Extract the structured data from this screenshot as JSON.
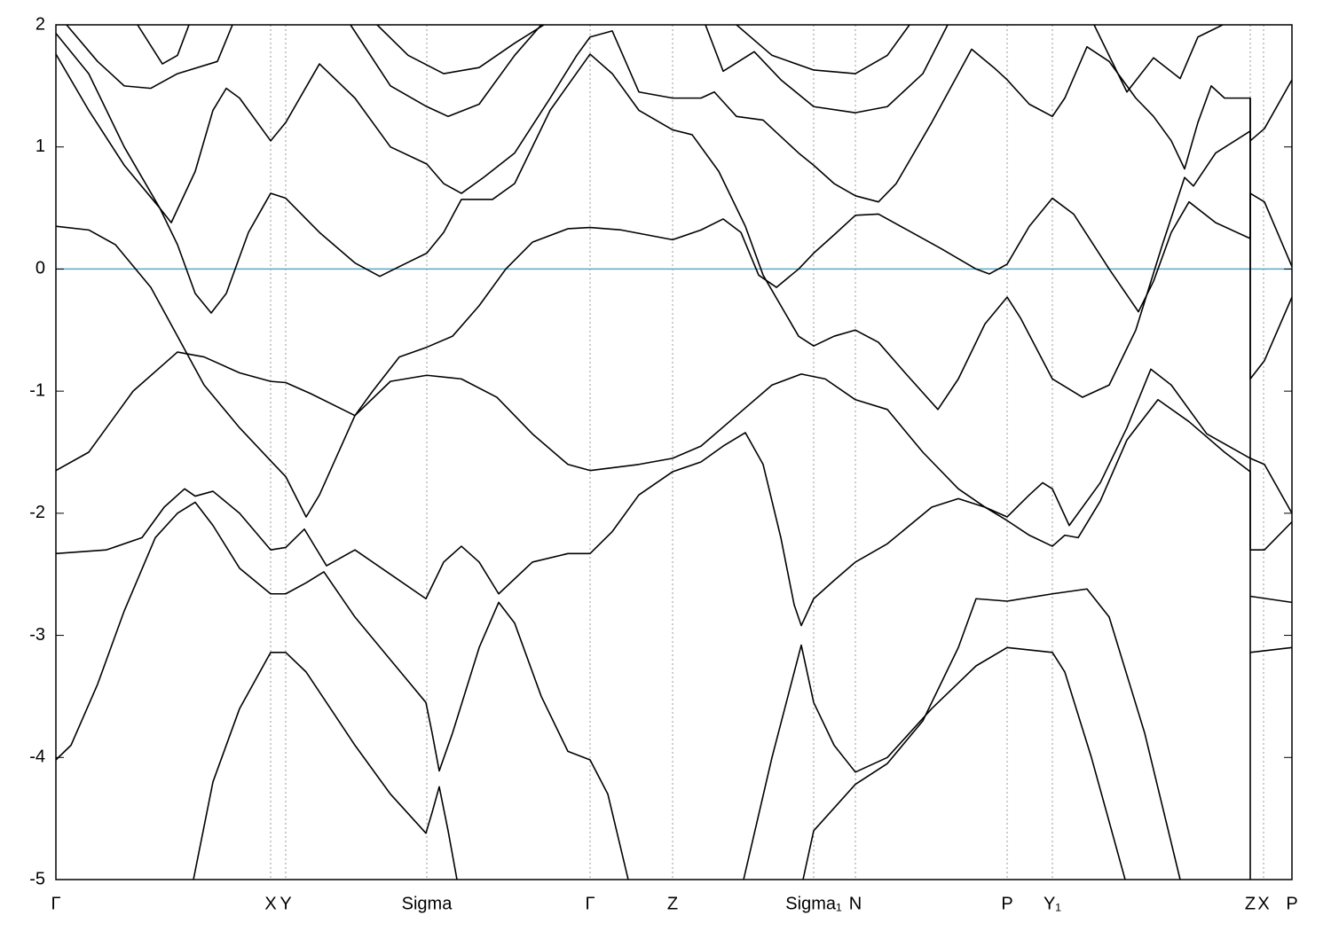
{
  "chart_data": {
    "type": "line",
    "color": "#000000",
    "xlim": [
      0,
      1393
    ],
    "ylim": [
      -5,
      2
    ],
    "yticks": [
      -5,
      -4,
      -3,
      -2,
      -1,
      0,
      1,
      2
    ],
    "xticks": [
      {
        "value": 0,
        "label": "Γ"
      },
      {
        "value": 242,
        "label": "X"
      },
      {
        "value": 259,
        "label": "Y"
      },
      {
        "value": 418,
        "label": "Sigma"
      },
      {
        "value": 602,
        "label": "Γ"
      },
      {
        "value": 695,
        "label": "Z"
      },
      {
        "value": 854,
        "label": "Sigma₁"
      },
      {
        "value": 901,
        "label": "N"
      },
      {
        "value": 1072,
        "label": "P"
      },
      {
        "value": 1123,
        "label": "Y₁"
      },
      {
        "value": 1346,
        "label": "Z"
      },
      {
        "value": 1361,
        "label": "X"
      },
      {
        "value": 1393,
        "label": "P"
      }
    ],
    "hline": {
      "value": 0,
      "color": "#5aa9c6"
    },
    "series": [
      {
        "x": [
          0,
          17,
          47,
          77,
          112,
          137,
          157,
          177,
          207,
          242,
          259,
          282,
          302,
          337,
          377,
          417,
          424,
          432,
          447,
          477,
          499,
          517,
          547,
          577,
          602,
          622,
          645
        ],
        "values": [
          -4.02,
          -3.9,
          -3.4,
          -2.8,
          -2.2,
          -2.0,
          -1.91,
          -2.1,
          -2.45,
          -2.66,
          -2.66,
          -2.57,
          -2.48,
          -2.85,
          -3.2,
          -3.55,
          -3.8,
          -4.11,
          -3.8,
          -3.1,
          -2.73,
          -2.9,
          -3.5,
          -3.95,
          -4.02,
          -4.3,
          -5
        ]
      },
      {
        "x": [
          0,
          57,
          97,
          122,
          145,
          157,
          177,
          207,
          242,
          259,
          280,
          305,
          337,
          377,
          417,
          437,
          457,
          477,
          499,
          537,
          577,
          602,
          627,
          657,
          695,
          727,
          752,
          777,
          797,
          817,
          832,
          840,
          854,
          877,
          901,
          937,
          987,
          1017,
          1047,
          1072,
          1097,
          1123,
          1137,
          1152,
          1177,
          1207,
          1242,
          1277,
          1317,
          1346,
          1346,
          1362,
          1393
        ],
        "values": [
          -2.33,
          -2.3,
          -2.2,
          -1.95,
          -1.8,
          -1.86,
          -1.82,
          -2.0,
          -2.3,
          -2.28,
          -2.13,
          -2.43,
          -2.3,
          -2.5,
          -2.7,
          -2.4,
          -2.27,
          -2.4,
          -2.66,
          -2.4,
          -2.33,
          -2.33,
          -2.15,
          -1.85,
          -1.66,
          -1.58,
          -1.45,
          -1.34,
          -1.6,
          -2.2,
          -2.75,
          -2.92,
          -2.7,
          -2.55,
          -2.4,
          -2.25,
          -1.95,
          -1.88,
          -1.95,
          -2.06,
          -2.18,
          -2.27,
          -2.18,
          -2.2,
          -1.9,
          -1.4,
          -1.07,
          -1.25,
          -1.5,
          -1.66,
          -2.3,
          -2.3,
          -2.07
        ]
      },
      {
        "x": [
          0,
          37,
          87,
          137,
          167,
          207,
          242,
          259,
          287,
          337,
          357,
          387,
          418,
          447,
          477,
          507,
          537,
          577,
          602,
          637,
          695,
          727,
          752,
          772,
          792,
          812,
          837,
          854,
          877,
          901,
          927,
          957,
          997,
          1037,
          1052,
          1072,
          1097,
          1123,
          1147,
          1187,
          1220,
          1237,
          1257,
          1277,
          1307,
          1346,
          1346,
          1362,
          1393
        ],
        "values": [
          -1.65,
          -1.5,
          -1.0,
          -0.68,
          -0.72,
          -0.85,
          -0.92,
          -0.93,
          -1.02,
          -1.2,
          -1.0,
          -0.72,
          -0.64,
          -0.55,
          -0.3,
          0.0,
          0.22,
          0.33,
          0.34,
          0.32,
          0.24,
          0.32,
          0.41,
          0.3,
          -0.05,
          -0.15,
          0.0,
          0.13,
          0.28,
          0.44,
          0.45,
          0.33,
          0.17,
          0.0,
          -0.04,
          0.04,
          0.35,
          0.58,
          0.45,
          0.0,
          -0.35,
          -0.1,
          0.3,
          0.55,
          0.38,
          0.25,
          0.62,
          0.55,
          0.02
        ]
      },
      {
        "x": [
          0,
          37,
          67,
          107,
          137,
          167,
          207,
          242,
          259,
          282,
          297,
          337,
          377,
          418,
          457,
          497,
          537,
          577,
          602,
          657,
          695,
          727,
          767,
          807,
          840,
          867,
          901,
          937,
          977,
          1017,
          1047,
          1072,
          1097,
          1112,
          1123,
          1142,
          1177,
          1207,
          1234,
          1257,
          1297,
          1346,
          1362,
          1393
        ],
        "values": [
          0.35,
          0.32,
          0.2,
          -0.15,
          -0.55,
          -0.95,
          -1.3,
          -1.57,
          -1.7,
          -2.03,
          -1.85,
          -1.2,
          -0.92,
          -0.87,
          -0.9,
          -1.05,
          -1.35,
          -1.6,
          -1.65,
          -1.6,
          -1.55,
          -1.45,
          -1.2,
          -0.95,
          -0.86,
          -0.9,
          -1.07,
          -1.15,
          -1.5,
          -1.8,
          -1.95,
          -2.03,
          -1.85,
          -1.75,
          -1.8,
          -2.1,
          -1.75,
          -1.3,
          -0.82,
          -0.95,
          -1.35,
          -1.55,
          -1.6,
          -2.0
        ]
      },
      {
        "x": [
          0,
          37,
          77,
          117,
          137,
          157,
          175,
          192,
          217,
          242,
          259,
          297,
          337,
          365,
          387,
          418,
          437,
          457,
          492,
          517,
          557,
          602,
          627,
          657,
          695,
          717,
          747,
          777,
          797,
          817,
          837,
          854,
          877,
          901,
          927,
          957,
          994,
          1017,
          1047,
          1072,
          1087,
          1123,
          1157,
          1187,
          1217,
          1247,
          1272,
          1282,
          1307,
          1346,
          1346,
          1362,
          1393
        ],
        "values": [
          1.76,
          1.3,
          0.85,
          0.5,
          0.2,
          -0.2,
          -0.36,
          -0.2,
          0.3,
          0.62,
          0.58,
          0.3,
          0.05,
          -0.06,
          0.02,
          0.13,
          0.3,
          0.57,
          0.57,
          0.7,
          1.3,
          1.76,
          1.6,
          1.3,
          1.14,
          1.1,
          0.8,
          0.35,
          -0.05,
          -0.3,
          -0.55,
          -0.63,
          -0.55,
          -0.5,
          -0.6,
          -0.85,
          -1.15,
          -0.9,
          -0.45,
          -0.23,
          -0.4,
          -0.9,
          -1.05,
          -0.95,
          -0.5,
          0.2,
          0.75,
          0.68,
          0.95,
          1.13,
          -0.9,
          -0.75,
          -0.23
        ]
      },
      {
        "x": [
          0,
          37,
          77,
          117,
          130,
          157,
          177,
          192,
          207,
          242,
          259,
          297,
          337,
          377,
          418,
          437,
          457,
          482,
          517,
          557,
          587,
          602,
          627,
          657,
          695,
          727,
          742,
          767,
          797,
          837,
          854,
          877,
          901,
          927,
          947,
          987,
          1032,
          1057,
          1072,
          1097,
          1123,
          1137,
          1162,
          1187,
          1217,
          1237,
          1257,
          1272,
          1287,
          1302,
          1317,
          1346,
          1346,
          1362,
          1393
        ],
        "values": [
          1.93,
          1.6,
          1.0,
          0.5,
          0.38,
          0.8,
          1.3,
          1.48,
          1.4,
          1.05,
          1.2,
          1.68,
          1.4,
          1.0,
          0.86,
          0.7,
          0.62,
          0.75,
          0.95,
          1.4,
          1.75,
          1.9,
          1.95,
          1.45,
          1.4,
          1.4,
          1.45,
          1.25,
          1.22,
          0.95,
          0.85,
          0.7,
          0.6,
          0.55,
          0.7,
          1.2,
          1.8,
          1.65,
          1.55,
          1.35,
          1.25,
          1.4,
          1.82,
          1.7,
          1.4,
          1.25,
          1.05,
          0.82,
          1.2,
          1.5,
          1.4,
          1.4,
          1.05,
          1.15,
          1.55
        ]
      },
      {
        "x": [
          12,
          47,
          77,
          107,
          137,
          182,
          199
        ],
        "values": [
          2.0,
          1.7,
          1.5,
          1.48,
          1.6,
          1.7,
          2.0
        ]
      },
      {
        "x": [
          92,
          120,
          137,
          150
        ],
        "values": [
          2.0,
          1.68,
          1.75,
          2.0
        ]
      },
      {
        "x": [
          332,
          377,
          418,
          442,
          477,
          517,
          547
        ],
        "values": [
          2.0,
          1.5,
          1.33,
          1.25,
          1.35,
          1.75,
          2.0
        ]
      },
      {
        "x": [
          362,
          397,
          437,
          477,
          517,
          550
        ],
        "values": [
          2.0,
          1.75,
          1.6,
          1.65,
          1.85,
          2.0
        ]
      },
      {
        "x": [
          732,
          752,
          787,
          817,
          854,
          901,
          937,
          977,
          1005
        ],
        "values": [
          2.0,
          1.62,
          1.78,
          1.55,
          1.33,
          1.28,
          1.33,
          1.6,
          2.0
        ]
      },
      {
        "x": [
          767,
          807,
          854,
          901,
          937,
          962
        ],
        "values": [
          2.0,
          1.75,
          1.63,
          1.6,
          1.75,
          2.0
        ]
      },
      {
        "x": [
          1170,
          1207,
          1237,
          1267,
          1287,
          1315
        ],
        "values": [
          2.0,
          1.45,
          1.73,
          1.56,
          1.9,
          2.0
        ]
      },
      {
        "x": [
          155,
          177,
          207,
          242,
          259,
          282,
          337,
          377,
          417,
          424,
          432,
          442,
          452
        ],
        "values": [
          -5,
          -4.2,
          -3.6,
          -3.14,
          -3.14,
          -3.3,
          -3.9,
          -4.3,
          -4.62,
          -4.45,
          -4.24,
          -4.6,
          -5
        ]
      },
      {
        "x": [
          775,
          807,
          840,
          854,
          877,
          901,
          937,
          987,
          1037,
          1072,
          1123,
          1137,
          1167,
          1205
        ],
        "values": [
          -5,
          -4.0,
          -3.08,
          -3.55,
          -3.9,
          -4.12,
          -4.0,
          -3.6,
          -3.25,
          -3.1,
          -3.14,
          -3.3,
          -4.0,
          -5
        ]
      },
      {
        "x": [
          842,
          854,
          901,
          937,
          977,
          1017,
          1037,
          1072,
          1123,
          1162,
          1187,
          1227,
          1267
        ],
        "values": [
          -5,
          -4.6,
          -4.22,
          -4.05,
          -3.7,
          -3.1,
          -2.7,
          -2.72,
          -2.66,
          -2.62,
          -2.85,
          -3.8,
          -5
        ]
      },
      {
        "x": [
          1346,
          1393
        ],
        "values": [
          -3.14,
          -3.1
        ]
      },
      {
        "x": [
          1346,
          1393
        ],
        "values": [
          -2.68,
          -2.73
        ]
      },
      {
        "x": [
          1346,
          1346
        ],
        "values": [
          -5,
          1.4
        ]
      }
    ]
  }
}
